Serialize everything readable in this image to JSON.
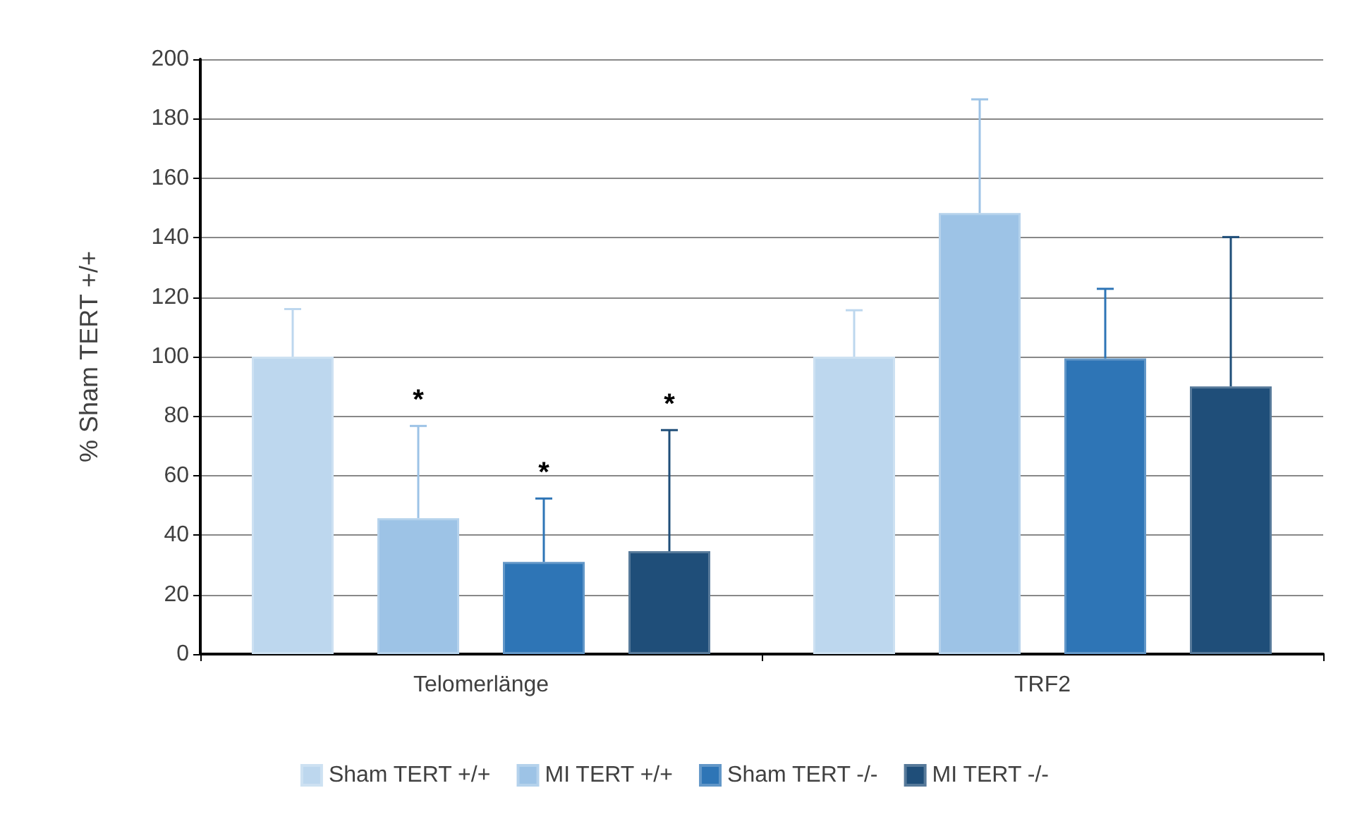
{
  "chart_data": {
    "type": "bar",
    "ylabel": "% Sham TERT +/+",
    "categories": [
      "Telomerlänge",
      "TRF2"
    ],
    "series": [
      {
        "name": "Sham TERT +/+",
        "color": "#bdd7ee",
        "values": [
          100,
          100
        ],
        "errors": [
          [
            100,
            116
          ],
          [
            100,
            115.6
          ]
        ]
      },
      {
        "name": "MI TERT +/+",
        "color": "#9dc3e6",
        "values": [
          45.7,
          148.3
        ],
        "errors": [
          [
            45.7,
            76.7
          ],
          [
            148.3,
            186.5
          ]
        ]
      },
      {
        "name": "Sham TERT -/-",
        "color": "#2e75b6",
        "values": [
          31,
          99.4
        ],
        "errors": [
          [
            31,
            52.3
          ],
          [
            99.4,
            122.8
          ]
        ]
      },
      {
        "name": "MI TERT -/-",
        "color": "#1f4e79",
        "values": [
          34.6,
          90
        ],
        "errors": [
          [
            34.6,
            75.3
          ],
          [
            90,
            140.2
          ]
        ]
      }
    ],
    "annotations": [
      "*",
      "*",
      "*"
    ],
    "ylim": [
      0,
      200
    ],
    "yticks": [
      0,
      20,
      40,
      60,
      80,
      100,
      120,
      140,
      160,
      180,
      200
    ],
    "grid": "y",
    "legend": "bottom"
  }
}
